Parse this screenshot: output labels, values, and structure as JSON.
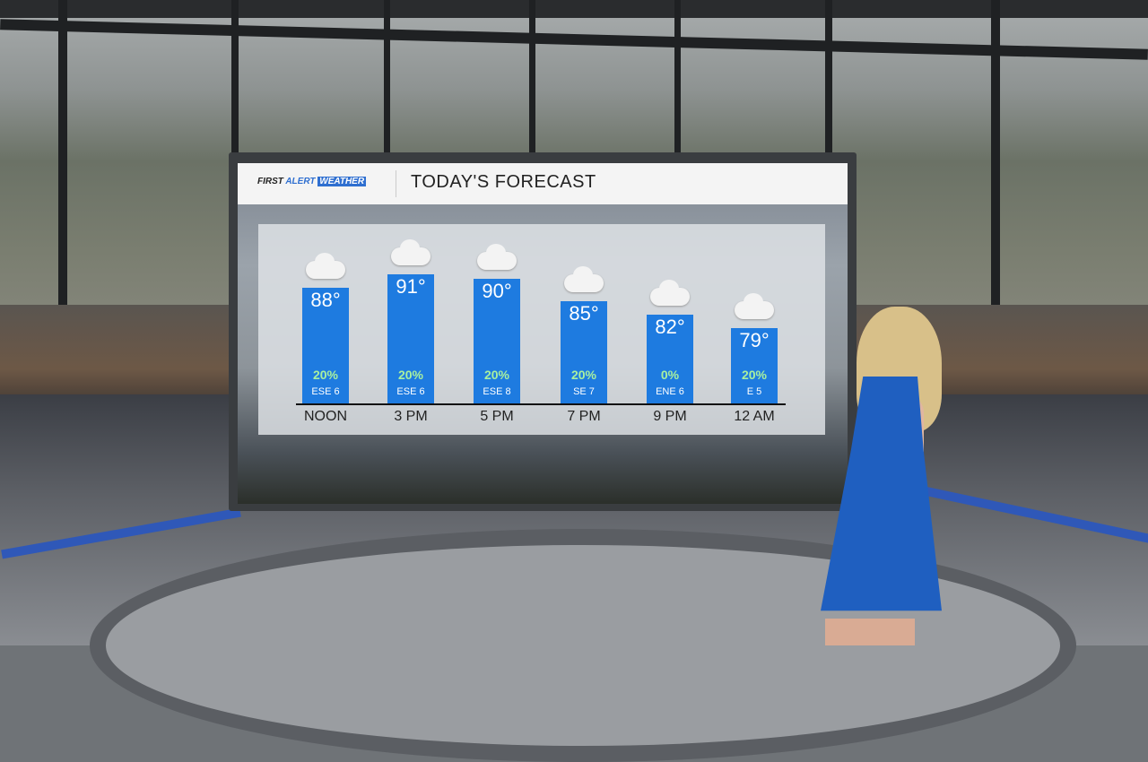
{
  "header": {
    "logo_first": "FIRST",
    "logo_alert": "ALERT",
    "logo_weather": "WEATHER",
    "title": "TODAY'S FORECAST"
  },
  "colors": {
    "bar": "#1e7be0",
    "precip_text": "#a8f0a0",
    "header_bg": "#f4f4f4"
  },
  "chart_data": {
    "type": "bar",
    "title": "TODAY'S FORECAST",
    "categories": [
      "NOON",
      "3 PM",
      "5 PM",
      "7 PM",
      "9 PM",
      "12 AM"
    ],
    "values": [
      88,
      91,
      90,
      85,
      82,
      79
    ],
    "temp_labels": [
      "88°",
      "91°",
      "90°",
      "85°",
      "82°",
      "79°"
    ],
    "precip_chance": [
      "20%",
      "20%",
      "20%",
      "20%",
      "0%",
      "20%"
    ],
    "wind": [
      "ESE 6",
      "ESE 6",
      "ESE 8",
      "SE 7",
      "ENE 6",
      "E 5"
    ],
    "icons": [
      "cloud-icon",
      "cloud-icon",
      "cloud-icon",
      "cloud-icon",
      "cloud-icon",
      "cloud-icon"
    ],
    "grid": false
  }
}
